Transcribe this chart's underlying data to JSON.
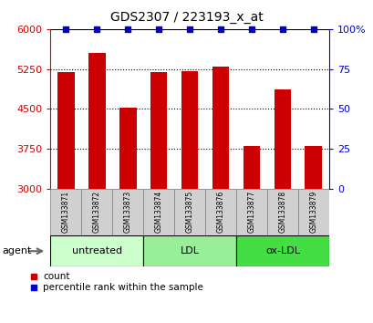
{
  "title": "GDS2307 / 223193_x_at",
  "samples": [
    "GSM133871",
    "GSM133872",
    "GSM133873",
    "GSM133874",
    "GSM133875",
    "GSM133876",
    "GSM133877",
    "GSM133878",
    "GSM133879"
  ],
  "counts": [
    5200,
    5560,
    4520,
    5200,
    5210,
    5290,
    3810,
    4870,
    3810
  ],
  "percentiles": [
    100,
    100,
    100,
    100,
    100,
    100,
    100,
    100,
    100
  ],
  "ylim_left": [
    3000,
    6000
  ],
  "ylim_right": [
    0,
    100
  ],
  "yticks_left": [
    3000,
    3750,
    4500,
    5250,
    6000
  ],
  "yticks_right": [
    0,
    25,
    50,
    75,
    100
  ],
  "bar_color": "#cc0000",
  "dot_color": "#0000cc",
  "groups": [
    {
      "label": "untreated",
      "start": 0,
      "end": 3,
      "color": "#ccffcc"
    },
    {
      "label": "LDL",
      "start": 3,
      "end": 6,
      "color": "#99ee99"
    },
    {
      "label": "ox-LDL",
      "start": 6,
      "end": 9,
      "color": "#44dd44"
    }
  ],
  "agent_label": "agent",
  "legend_count_label": "count",
  "legend_pct_label": "percentile rank within the sample",
  "sample_box_color": "#d0d0d0",
  "sample_box_edge": "#888888"
}
